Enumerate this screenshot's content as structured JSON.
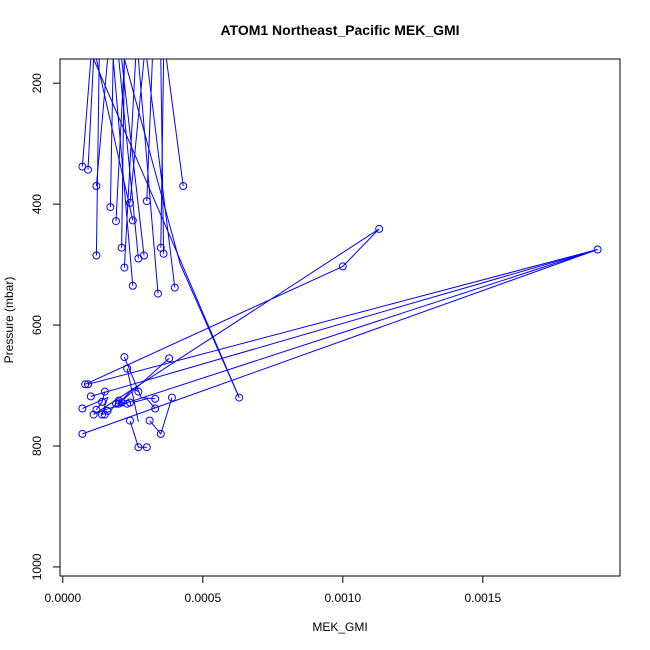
{
  "chart_data": {
    "type": "scatter",
    "title": "ATOM1 Northeast_Pacific MEK_GMI",
    "xlabel": "MEK_GMI",
    "ylabel": "Pressure (mbar)",
    "xlim": [
      -1e-05,
      0.00199
    ],
    "ylim": [
      1015,
      160
    ],
    "y_reversed": true,
    "xticks": [
      0.0,
      0.0005,
      0.001,
      0.0015
    ],
    "xtick_labels": [
      "0.0000",
      "0.0005",
      "0.0010",
      "0.0015"
    ],
    "yticks": [
      200,
      400,
      600,
      800,
      1000
    ],
    "ytick_labels": [
      "200",
      "400",
      "600",
      "800",
      "1000"
    ],
    "color": "#0000ff",
    "grid": false,
    "series": [
      {
        "x": [
          7e-05,
          0.0001,
          0.0001
        ],
        "y": [
          338,
          160,
          160
        ]
      },
      {
        "x": [
          9e-05,
          0.00011,
          0.00013,
          0.00016
        ],
        "y": [
          343,
          160,
          160,
          160
        ]
      },
      {
        "x": [
          0.00012,
          0.00016,
          0.00025
        ],
        "y": [
          370,
          160,
          160
        ]
      },
      {
        "x": [
          0.00017,
          0.00018,
          0.0002
        ],
        "y": [
          405,
          160,
          160
        ]
      },
      {
        "x": [
          0.00019,
          0.00022,
          0.00026
        ],
        "y": [
          428,
          160,
          160
        ]
      },
      {
        "x": [
          0.00024,
          0.00029,
          0.00036
        ],
        "y": [
          398,
          160,
          160
        ]
      },
      {
        "x": [
          0.00025,
          0.00012,
          9e-05,
          0.00014
        ],
        "y": [
          427,
          160,
          160,
          160
        ]
      },
      {
        "x": [
          0.0003,
          0.00032,
          0.00027,
          0.00015
        ],
        "y": [
          395,
          160,
          160,
          160
        ]
      },
      {
        "x": [
          0.00043,
          0.00037,
          0.00033,
          0.00027
        ],
        "y": [
          370,
          160,
          160,
          160
        ]
      },
      {
        "x": [
          0.00012,
          0.00013,
          0.00015
        ],
        "y": [
          485,
          160,
          160
        ]
      },
      {
        "x": [
          0.00021,
          0.00022,
          0.00025
        ],
        "y": [
          472,
          160,
          160
        ]
      },
      {
        "x": [
          0.00022,
          0.00026
        ],
        "y": [
          505,
          160
        ]
      },
      {
        "x": [
          0.00027,
          0.0002,
          0.00013
        ],
        "y": [
          490,
          160,
          160
        ]
      },
      {
        "x": [
          0.00029,
          0.00021,
          0.00018
        ],
        "y": [
          485,
          160,
          160
        ]
      },
      {
        "x": [
          0.00035,
          0.00036,
          0.00037,
          0.00038
        ],
        "y": [
          472,
          160,
          160,
          160
        ]
      },
      {
        "x": [
          0.00036,
          0.00035,
          0.00036
        ],
        "y": [
          482,
          160,
          160
        ]
      },
      {
        "x": [
          0.00034,
          0.00027,
          0.00021
        ],
        "y": [
          548,
          160,
          160
        ]
      },
      {
        "x": [
          0.0004,
          0.0003,
          0.00022
        ],
        "y": [
          538,
          160,
          160
        ]
      },
      {
        "x": [
          0.00025,
          0.00018
        ],
        "y": [
          535,
          160
        ]
      },
      {
        "x": [
          0.00063,
          0.00042,
          0.00022
        ],
        "y": [
          720,
          500,
          160
        ]
      },
      {
        "x": [
          0.00063,
          0.00038,
          0.00011
        ],
        "y": [
          720,
          450,
          160
        ]
      },
      {
        "x": [
          0.00022,
          0.00028,
          0.00033
        ],
        "y": [
          653,
          720,
          722
        ]
      },
      {
        "x": [
          0.00023,
          0.00027
        ],
        "y": [
          672,
          760
        ]
      },
      {
        "x": [
          0.00038,
          0.0002
        ],
        "y": [
          655,
          730
        ]
      },
      {
        "x": [
          8e-05,
          0.001,
          0.00113,
          0.00011
        ],
        "y": [
          698,
          503,
          441,
          748
        ]
      },
      {
        "x": [
          9e-05,
          0.00191,
          0.00012
        ],
        "y": [
          698,
          475,
          745
        ]
      },
      {
        "x": [
          0.0001,
          0.00191,
          7e-05
        ],
        "y": [
          718,
          475,
          780
        ]
      },
      {
        "x": [
          7e-05,
          0.00016,
          0.00014
        ],
        "y": [
          738,
          720,
          748
        ]
      },
      {
        "x": [
          0.00012,
          0.00014,
          0.00015
        ],
        "y": [
          740,
          727,
          710
        ]
      },
      {
        "x": [
          0.00014,
          0.00017,
          0.00019
        ],
        "y": [
          748,
          742,
          730
        ]
      },
      {
        "x": [
          0.0002,
          0.00021,
          0.00023
        ],
        "y": [
          725,
          728,
          730
        ]
      },
      {
        "x": [
          0.00024,
          0.00027,
          0.0003
        ],
        "y": [
          758,
          802,
          802
        ]
      },
      {
        "x": [
          0.00025,
          0.0003,
          0.00033
        ],
        "y": [
          728,
          722,
          738
        ]
      },
      {
        "x": [
          0.00031,
          0.00035,
          0.00039
        ],
        "y": [
          758,
          780,
          720
        ]
      },
      {
        "x": [
          0.00027,
          0.00025,
          0.0002
        ],
        "y": [
          710,
          705,
          730
        ]
      }
    ],
    "points": [
      [
        7e-05,
        338
      ],
      [
        9e-05,
        343
      ],
      [
        0.00012,
        370
      ],
      [
        0.00043,
        370
      ],
      [
        0.00017,
        405
      ],
      [
        0.00019,
        428
      ],
      [
        0.00024,
        398
      ],
      [
        0.00025,
        427
      ],
      [
        0.0003,
        395
      ],
      [
        0.00012,
        485
      ],
      [
        0.00021,
        472
      ],
      [
        0.00022,
        505
      ],
      [
        0.00027,
        490
      ],
      [
        0.00029,
        485
      ],
      [
        0.00035,
        472
      ],
      [
        0.00036,
        482
      ],
      [
        0.00034,
        548
      ],
      [
        0.0004,
        538
      ],
      [
        0.00025,
        535
      ],
      [
        0.00113,
        441
      ],
      [
        0.001,
        503
      ],
      [
        0.00191,
        475
      ],
      [
        0.00063,
        720
      ],
      [
        0.00022,
        653
      ],
      [
        0.00023,
        672
      ],
      [
        0.00038,
        655
      ],
      [
        8e-05,
        698
      ],
      [
        9e-05,
        698
      ],
      [
        0.0001,
        718
      ],
      [
        7e-05,
        738
      ],
      [
        0.00012,
        740
      ],
      [
        0.00011,
        748
      ],
      [
        0.00014,
        748
      ],
      [
        0.00015,
        748
      ],
      [
        0.00015,
        710
      ],
      [
        0.00016,
        742
      ],
      [
        0.00019,
        730
      ],
      [
        0.0002,
        725
      ],
      [
        0.00021,
        728
      ],
      [
        0.00023,
        730
      ],
      [
        0.00024,
        728
      ],
      [
        0.00024,
        758
      ],
      [
        0.00027,
        710
      ],
      [
        0.00027,
        802
      ],
      [
        0.0003,
        802
      ],
      [
        0.00031,
        758
      ],
      [
        0.00033,
        722
      ],
      [
        0.00033,
        738
      ],
      [
        0.00035,
        780
      ],
      [
        0.00039,
        720
      ],
      [
        7e-05,
        780
      ],
      [
        0.00014,
        727
      ],
      [
        0.0002,
        730
      ]
    ]
  }
}
